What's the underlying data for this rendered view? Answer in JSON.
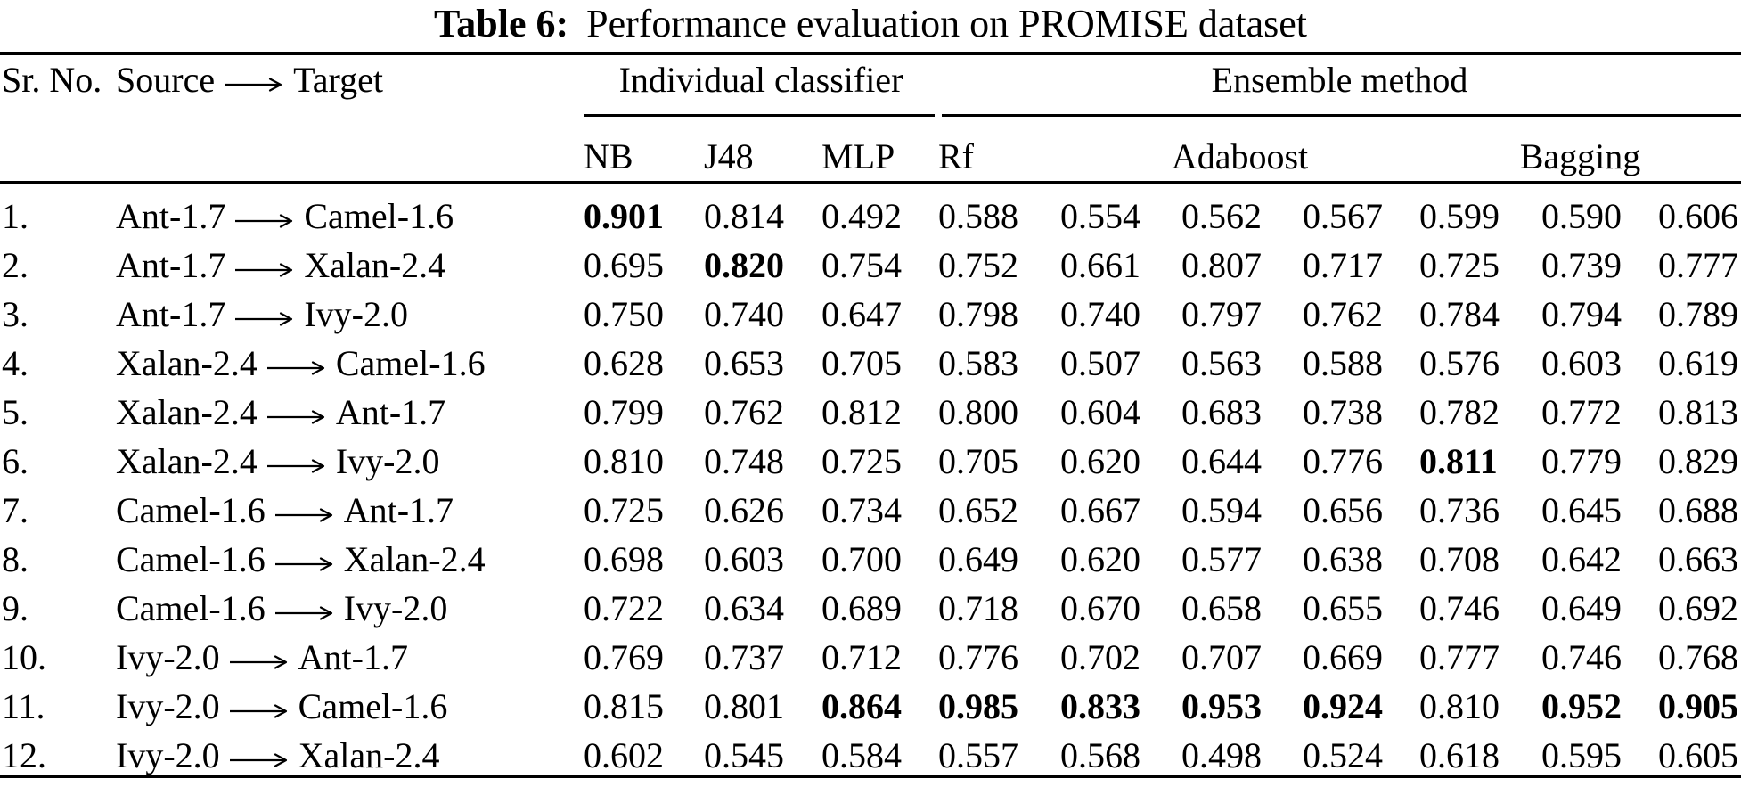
{
  "caption": {
    "label": "Table 6:",
    "text": "Performance evaluation on PROMISE dataset"
  },
  "header": {
    "sr_no": "Sr. No.",
    "source_label": "Source",
    "target_label": "Target",
    "group_individual": "Individual classifier",
    "group_ensemble": "Ensemble method",
    "classifiers": [
      "NB",
      "J48",
      "MLP",
      "Rf"
    ],
    "ensemble_groups": [
      "Adaboost",
      "Bagging"
    ]
  },
  "rows": [
    {
      "sr": "1.",
      "source": "Ant-1.7",
      "target": "Camel-1.6",
      "values": [
        "0.901",
        "0.814",
        "0.492",
        "0.588",
        "0.554",
        "0.562",
        "0.567",
        "0.599",
        "0.590",
        "0.606"
      ],
      "bold": [
        0
      ]
    },
    {
      "sr": "2.",
      "source": "Ant-1.7",
      "target": "Xalan-2.4",
      "values": [
        "0.695",
        "0.820",
        "0.754",
        "0.752",
        "0.661",
        "0.807",
        "0.717",
        "0.725",
        "0.739",
        "0.777"
      ],
      "bold": [
        1
      ]
    },
    {
      "sr": "3.",
      "source": "Ant-1.7",
      "target": "Ivy-2.0",
      "values": [
        "0.750",
        "0.740",
        "0.647",
        "0.798",
        "0.740",
        "0.797",
        "0.762",
        "0.784",
        "0.794",
        "0.789"
      ],
      "bold": []
    },
    {
      "sr": "4.",
      "source": "Xalan-2.4",
      "target": "Camel-1.6",
      "values": [
        "0.628",
        "0.653",
        "0.705",
        "0.583",
        "0.507",
        "0.563",
        "0.588",
        "0.576",
        "0.603",
        "0.619"
      ],
      "bold": []
    },
    {
      "sr": "5.",
      "source": "Xalan-2.4",
      "target": "Ant-1.7",
      "values": [
        "0.799",
        "0.762",
        "0.812",
        "0.800",
        "0.604",
        "0.683",
        "0.738",
        "0.782",
        "0.772",
        "0.813"
      ],
      "bold": []
    },
    {
      "sr": "6.",
      "source": "Xalan-2.4",
      "target": "Ivy-2.0",
      "values": [
        "0.810",
        "0.748",
        "0.725",
        "0.705",
        "0.620",
        "0.644",
        "0.776",
        "0.811",
        "0.779",
        "0.829"
      ],
      "bold": [
        7
      ]
    },
    {
      "sr": "7.",
      "source": "Camel-1.6",
      "target": "Ant-1.7",
      "values": [
        "0.725",
        "0.626",
        "0.734",
        "0.652",
        "0.667",
        "0.594",
        "0.656",
        "0.736",
        "0.645",
        "0.688"
      ],
      "bold": []
    },
    {
      "sr": "8.",
      "source": "Camel-1.6",
      "target": "Xalan-2.4",
      "values": [
        "0.698",
        "0.603",
        "0.700",
        "0.649",
        "0.620",
        "0.577",
        "0.638",
        "0.708",
        "0.642",
        "0.663"
      ],
      "bold": []
    },
    {
      "sr": "9.",
      "source": "Camel-1.6",
      "target": "Ivy-2.0",
      "values": [
        "0.722",
        "0.634",
        "0.689",
        "0.718",
        "0.670",
        "0.658",
        "0.655",
        "0.746",
        "0.649",
        "0.692"
      ],
      "bold": []
    },
    {
      "sr": "10.",
      "source": "Ivy-2.0",
      "target": "Ant-1.7",
      "values": [
        "0.769",
        "0.737",
        "0.712",
        "0.776",
        "0.702",
        "0.707",
        "0.669",
        "0.777",
        "0.746",
        "0.768"
      ],
      "bold": []
    },
    {
      "sr": "11.",
      "source": "Ivy-2.0",
      "target": "Camel-1.6",
      "values": [
        "0.815",
        "0.801",
        "0.864",
        "0.985",
        "0.833",
        "0.953",
        "0.924",
        "0.810",
        "0.952",
        "0.905"
      ],
      "bold": [
        2,
        3,
        4,
        5,
        6,
        8,
        9
      ]
    },
    {
      "sr": "12.",
      "source": "Ivy-2.0",
      "target": "Xalan-2.4",
      "values": [
        "0.602",
        "0.545",
        "0.584",
        "0.557",
        "0.568",
        "0.498",
        "0.524",
        "0.618",
        "0.595",
        "0.605"
      ],
      "bold": []
    }
  ]
}
